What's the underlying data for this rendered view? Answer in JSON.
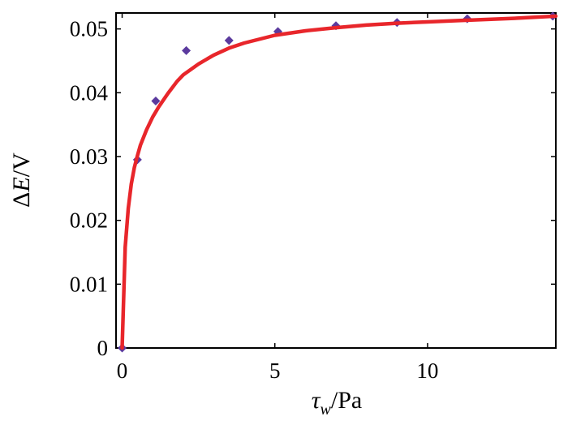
{
  "chart_data": {
    "type": "scatter",
    "title": "",
    "xlabel_parts": {
      "symbol": "τ",
      "subscript": "w",
      "unit": "/Pa"
    },
    "ylabel_parts": {
      "prefix": "Δ",
      "symbol": "E",
      "unit": "/V"
    },
    "xlim": [
      -0.2,
      14.2
    ],
    "ylim": [
      0,
      0.0525
    ],
    "xticks": [
      0,
      5,
      10
    ],
    "xtick_labels": [
      "0",
      "5",
      "10"
    ],
    "yticks": [
      0,
      0.01,
      0.02,
      0.03,
      0.04,
      0.05
    ],
    "ytick_labels": [
      "0",
      "0.01",
      "0.02",
      "0.03",
      "0.04",
      "0.05"
    ],
    "grid": false,
    "legend": "none",
    "series": [
      {
        "kind": "markers",
        "color": "#5b3a9e",
        "marker": "diamond",
        "x": [
          0,
          0.5,
          1.1,
          2.1,
          3.5,
          5.1,
          7.0,
          9.0,
          11.3,
          14.1
        ],
        "y": [
          0,
          0.0295,
          0.0387,
          0.0466,
          0.0482,
          0.0496,
          0.0505,
          0.051,
          0.0516,
          0.052
        ]
      },
      {
        "kind": "line",
        "color": "#e8262b",
        "x": [
          0,
          0.1,
          0.2,
          0.3,
          0.4,
          0.5,
          0.6,
          0.8,
          1.0,
          1.2,
          1.5,
          1.8,
          2.0,
          2.5,
          3.0,
          3.5,
          4.0,
          5.0,
          6.0,
          7.0,
          8.0,
          9.0,
          10.0,
          11.0,
          12.0,
          13.0,
          14.2
        ],
        "y": [
          0,
          0.0158,
          0.0219,
          0.0257,
          0.0283,
          0.0301,
          0.0318,
          0.0342,
          0.0362,
          0.0378,
          0.0399,
          0.0418,
          0.0428,
          0.0445,
          0.0459,
          0.047,
          0.0478,
          0.049,
          0.0497,
          0.0502,
          0.0506,
          0.0509,
          0.0511,
          0.0513,
          0.0515,
          0.0517,
          0.052
        ]
      }
    ]
  }
}
